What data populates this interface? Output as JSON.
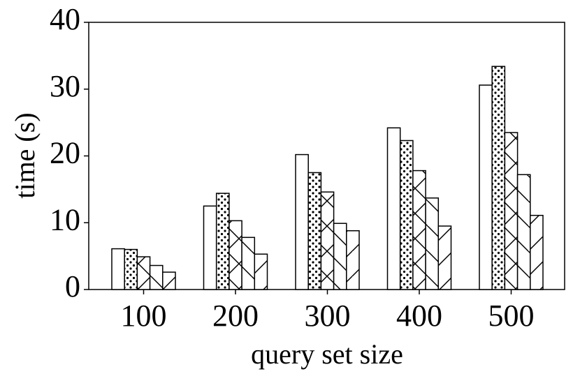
{
  "chart_data": {
    "type": "bar",
    "xlabel": "query set size",
    "ylabel": "time (s)",
    "categories": [
      "100",
      "200",
      "300",
      "400",
      "500"
    ],
    "ylim": [
      0,
      40
    ],
    "yticks": [
      0,
      10,
      20,
      30,
      40
    ],
    "grid": false,
    "series": [
      {
        "color": "#ffffff",
        "hatch": "none",
        "values": [
          6.1,
          12.5,
          20.2,
          24.2,
          30.6
        ]
      },
      {
        "color": "#ffffff",
        "hatch": "dots",
        "values": [
          6.0,
          14.4,
          17.5,
          22.3,
          33.4
        ]
      },
      {
        "color": "#ffffff",
        "hatch": "cross",
        "values": [
          4.9,
          10.3,
          14.6,
          17.8,
          23.5
        ]
      },
      {
        "color": "#ffffff",
        "hatch": "backslash",
        "values": [
          3.6,
          7.8,
          9.9,
          13.7,
          17.2
        ]
      },
      {
        "color": "#ffffff",
        "hatch": "slash",
        "values": [
          2.6,
          5.3,
          8.8,
          9.5,
          11.1
        ]
      }
    ]
  }
}
